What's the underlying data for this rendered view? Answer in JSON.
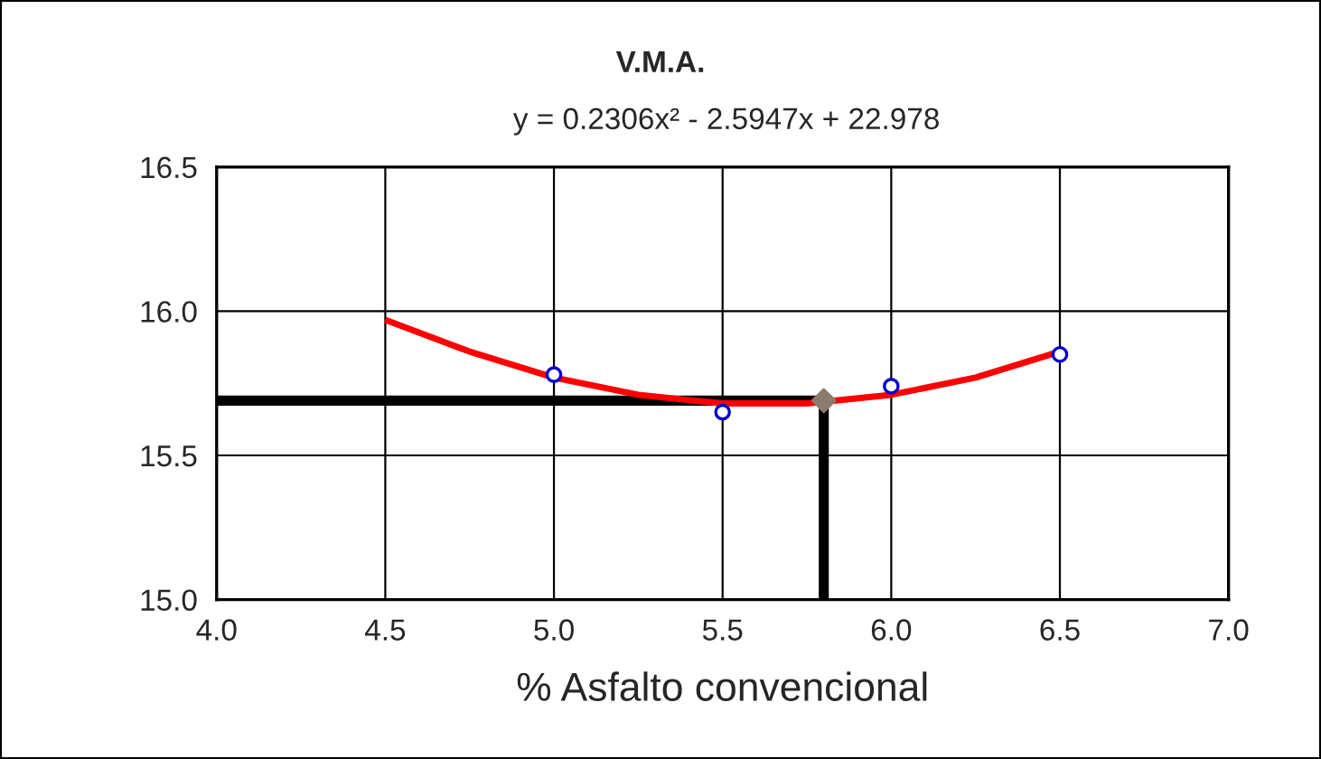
{
  "chart_data": {
    "type": "scatter",
    "title": "V.M.A.",
    "subtitle": "y = 0.2306x² - 2.5947x + 22.978",
    "xlabel": "% Asfalto convencional",
    "xlim": [
      4.0,
      7.0
    ],
    "xticks": [
      {
        "value": 4.0,
        "label": "4.0"
      },
      {
        "value": 4.5,
        "label": "4.5"
      },
      {
        "value": 5.0,
        "label": "5.0"
      },
      {
        "value": 5.5,
        "label": "5.5"
      },
      {
        "value": 6.0,
        "label": "6.0"
      },
      {
        "value": 6.5,
        "label": "6.5"
      },
      {
        "value": 7.0,
        "label": "7.0"
      }
    ],
    "ylim": [
      15.0,
      16.5
    ],
    "yticks": [
      {
        "value": 15.0,
        "label": "15.0"
      },
      {
        "value": 15.5,
        "label": "15.5"
      },
      {
        "value": 16.0,
        "label": "16.0"
      },
      {
        "value": 16.5,
        "label": "16.5"
      }
    ],
    "grid": true,
    "legend": false,
    "series": [
      {
        "type": "line",
        "color": "#000000",
        "x": [
          4.0,
          5.8
        ],
        "values": [
          15.69,
          15.69
        ],
        "marker": "none",
        "line_style": "solid"
      },
      {
        "type": "line",
        "color": "#000000",
        "x": [
          5.8,
          5.8
        ],
        "values": [
          15.0,
          15.69
        ],
        "marker": "none",
        "line_style": "solid"
      },
      {
        "type": "line",
        "color": "#ff0000",
        "x": [
          4.5,
          4.75,
          5.0,
          5.25,
          5.5,
          5.75,
          6.0,
          6.25,
          6.5
        ],
        "values": [
          15.97,
          15.86,
          15.77,
          15.71,
          15.68,
          15.68,
          15.71,
          15.77,
          15.86
        ],
        "marker": "none",
        "line_style": "solid"
      },
      {
        "color": "#0000cc",
        "x": [
          5.0,
          5.5,
          6.0,
          6.5
        ],
        "values": [
          15.78,
          15.65,
          15.74,
          15.85
        ],
        "marker": "circle"
      },
      {
        "color": "#8c7b6b",
        "x": [
          5.8
        ],
        "values": [
          15.69
        ],
        "marker": "diamond"
      }
    ]
  }
}
